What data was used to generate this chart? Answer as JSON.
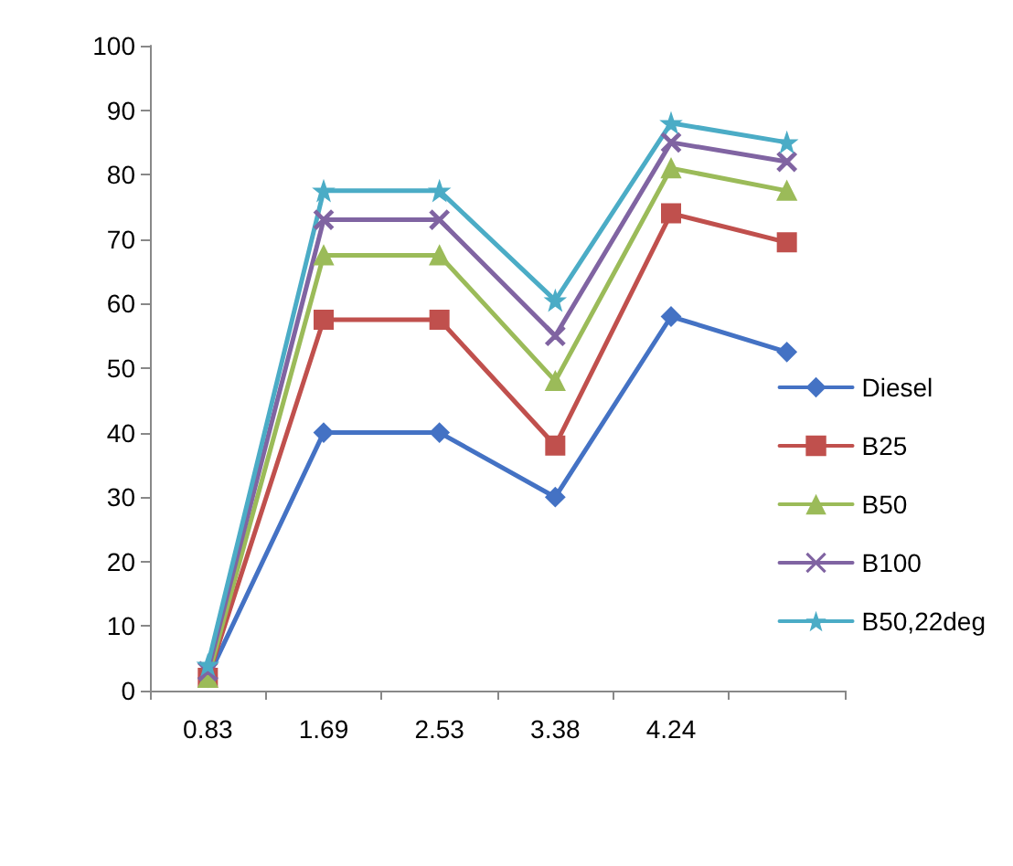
{
  "chart_data": {
    "type": "line",
    "categories": [
      "0.83",
      "1.69",
      "2.53",
      "3.38",
      "4.24",
      null
    ],
    "series": [
      {
        "name": "Diesel",
        "color": "#4472c4",
        "marker": "diamond",
        "values": [
          2,
          40,
          40,
          30,
          58,
          52.5
        ]
      },
      {
        "name": "B25",
        "color": "#c0504d",
        "marker": "square",
        "values": [
          2,
          57.5,
          57.5,
          38,
          74,
          69.5
        ]
      },
      {
        "name": "B50",
        "color": "#9bbb59",
        "marker": "triangle",
        "values": [
          2,
          67.5,
          67.5,
          48,
          81,
          77.5
        ]
      },
      {
        "name": "B100",
        "color": "#8064a2",
        "marker": "cross",
        "values": [
          3,
          73,
          73,
          55,
          85,
          82
        ]
      },
      {
        "name": "B50,22deg",
        "color": "#4bacc6",
        "marker": "star",
        "values": [
          4,
          77.5,
          77.5,
          60.5,
          88,
          85
        ]
      }
    ],
    "ylim": [
      0,
      100
    ],
    "yticks": [
      0,
      10,
      20,
      30,
      40,
      50,
      60,
      70,
      80,
      90,
      100
    ],
    "grid": false,
    "legend": "right",
    "line_style": "solid"
  }
}
